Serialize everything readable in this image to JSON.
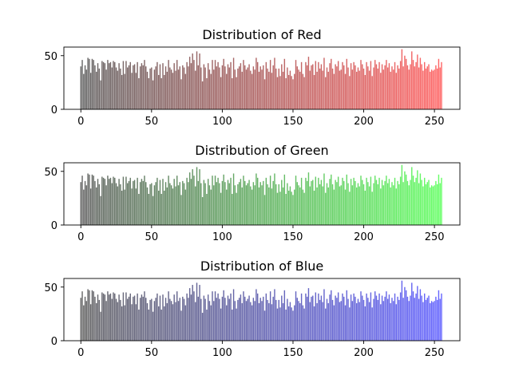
{
  "chart_data": [
    {
      "type": "bar",
      "title": "Distribution of Red",
      "color_end": "#ff0000",
      "xlim": [
        -12,
        268
      ],
      "ylim": [
        0,
        58
      ],
      "xticks": [
        0,
        50,
        100,
        150,
        200,
        250
      ],
      "yticks": [
        0,
        50
      ],
      "x_start": 0,
      "values": [
        40,
        46,
        33,
        41,
        37,
        48,
        47,
        34,
        47,
        46,
        41,
        35,
        43,
        38,
        27,
        45,
        44,
        43,
        37,
        46,
        43,
        44,
        39,
        45,
        44,
        39,
        36,
        43,
        38,
        32,
        45,
        33,
        45,
        39,
        41,
        44,
        34,
        41,
        42,
        34,
        44,
        29,
        40,
        43,
        41,
        46,
        40,
        35,
        29,
        38,
        39,
        27,
        37,
        40,
        44,
        32,
        42,
        29,
        43,
        32,
        40,
        35,
        46,
        39,
        37,
        34,
        43,
        36,
        46,
        37,
        40,
        28,
        41,
        39,
        33,
        44,
        40,
        49,
        43,
        52,
        46,
        36,
        54,
        41,
        52,
        39,
        26,
        42,
        39,
        29,
        43,
        37,
        33,
        46,
        37,
        46,
        40,
        44,
        39,
        30,
        41,
        47,
        40,
        33,
        42,
        39,
        44,
        29,
        48,
        37,
        30,
        38,
        40,
        43,
        35,
        46,
        41,
        37,
        39,
        42,
        36,
        33,
        40,
        37,
        48,
        44,
        35,
        40,
        37,
        41,
        28,
        44,
        38,
        35,
        46,
        34,
        41,
        48,
        38,
        30,
        38,
        31,
        42,
        35,
        47,
        29,
        39,
        32,
        36,
        31,
        28,
        33,
        46,
        40,
        37,
        35,
        44,
        33,
        30,
        44,
        41,
        49,
        36,
        41,
        42,
        32,
        45,
        35,
        44,
        38,
        42,
        36,
        48,
        30,
        39,
        35,
        43,
        47,
        38,
        33,
        42,
        40,
        45,
        36,
        37,
        44,
        41,
        33,
        47,
        39,
        31,
        43,
        37,
        44,
        41,
        35,
        39,
        36,
        46,
        42,
        38,
        32,
        44,
        40,
        36,
        45,
        31,
        39,
        46,
        42,
        38,
        44,
        34,
        42,
        37,
        41,
        46,
        39,
        43,
        35,
        40,
        37,
        44,
        34,
        41,
        38,
        45,
        56,
        40,
        50,
        47,
        41,
        37,
        42,
        54,
        46,
        40,
        44,
        51,
        39,
        48,
        42,
        36,
        44,
        38,
        40,
        42,
        35,
        37,
        36,
        37,
        41,
        38,
        47,
        39,
        44
      ]
    },
    {
      "type": "bar",
      "title": "Distribution of Green",
      "color_end": "#00ff00",
      "xlim": [
        -12,
        268
      ],
      "ylim": [
        0,
        58
      ],
      "xticks": [
        0,
        50,
        100,
        150,
        200,
        250
      ],
      "yticks": [
        0,
        50
      ],
      "x_start": 0,
      "values": [
        40,
        46,
        33,
        41,
        37,
        48,
        47,
        34,
        47,
        46,
        41,
        35,
        43,
        38,
        27,
        45,
        44,
        43,
        37,
        46,
        43,
        44,
        39,
        45,
        44,
        39,
        36,
        43,
        38,
        32,
        45,
        33,
        45,
        39,
        41,
        44,
        34,
        41,
        42,
        34,
        44,
        29,
        40,
        43,
        41,
        46,
        40,
        35,
        29,
        38,
        39,
        27,
        37,
        40,
        44,
        32,
        42,
        29,
        43,
        32,
        40,
        35,
        46,
        39,
        37,
        34,
        43,
        36,
        46,
        37,
        40,
        28,
        41,
        39,
        33,
        44,
        40,
        49,
        43,
        52,
        46,
        36,
        54,
        41,
        52,
        39,
        26,
        42,
        39,
        29,
        43,
        37,
        33,
        46,
        37,
        46,
        40,
        44,
        39,
        30,
        41,
        47,
        40,
        33,
        42,
        39,
        44,
        29,
        48,
        37,
        30,
        38,
        40,
        43,
        35,
        46,
        41,
        37,
        39,
        42,
        36,
        33,
        40,
        37,
        48,
        44,
        35,
        40,
        37,
        41,
        28,
        44,
        38,
        35,
        46,
        34,
        41,
        48,
        38,
        30,
        38,
        31,
        42,
        35,
        47,
        29,
        39,
        32,
        36,
        31,
        28,
        33,
        46,
        40,
        37,
        35,
        44,
        33,
        30,
        44,
        41,
        49,
        36,
        41,
        42,
        32,
        45,
        35,
        44,
        38,
        42,
        36,
        48,
        30,
        39,
        35,
        43,
        47,
        38,
        33,
        42,
        40,
        45,
        36,
        37,
        44,
        41,
        33,
        47,
        39,
        31,
        43,
        37,
        44,
        41,
        35,
        39,
        36,
        46,
        42,
        38,
        32,
        44,
        40,
        36,
        45,
        31,
        39,
        46,
        42,
        38,
        44,
        34,
        42,
        37,
        41,
        46,
        39,
        43,
        35,
        40,
        37,
        44,
        34,
        41,
        38,
        45,
        56,
        40,
        50,
        47,
        41,
        37,
        42,
        54,
        46,
        40,
        44,
        51,
        39,
        48,
        42,
        36,
        44,
        38,
        40,
        42,
        35,
        37,
        36,
        37,
        41,
        38,
        47,
        39,
        44
      ]
    },
    {
      "type": "bar",
      "title": "Distribution of Blue",
      "color_end": "#0000ff",
      "xlim": [
        -12,
        268
      ],
      "ylim": [
        0,
        58
      ],
      "xticks": [
        0,
        50,
        100,
        150,
        200,
        250
      ],
      "yticks": [
        0,
        50
      ],
      "x_start": 0,
      "values": [
        40,
        46,
        33,
        41,
        37,
        48,
        47,
        34,
        47,
        46,
        41,
        35,
        43,
        38,
        27,
        45,
        44,
        43,
        37,
        46,
        43,
        44,
        39,
        45,
        44,
        39,
        36,
        43,
        38,
        32,
        45,
        33,
        45,
        39,
        41,
        44,
        34,
        41,
        42,
        34,
        44,
        29,
        40,
        43,
        41,
        46,
        40,
        35,
        29,
        38,
        39,
        27,
        37,
        40,
        44,
        32,
        42,
        29,
        43,
        32,
        40,
        35,
        46,
        39,
        37,
        34,
        43,
        36,
        46,
        37,
        40,
        28,
        41,
        39,
        33,
        44,
        40,
        49,
        43,
        52,
        46,
        36,
        54,
        41,
        52,
        39,
        26,
        42,
        39,
        29,
        43,
        37,
        33,
        46,
        37,
        46,
        40,
        44,
        39,
        30,
        41,
        47,
        40,
        33,
        42,
        39,
        44,
        29,
        48,
        37,
        30,
        38,
        40,
        43,
        35,
        46,
        41,
        37,
        39,
        42,
        36,
        33,
        40,
        37,
        48,
        44,
        35,
        40,
        37,
        41,
        28,
        44,
        38,
        35,
        46,
        34,
        41,
        48,
        38,
        30,
        38,
        31,
        42,
        35,
        47,
        29,
        39,
        32,
        36,
        31,
        28,
        33,
        46,
        40,
        37,
        35,
        44,
        33,
        30,
        44,
        41,
        49,
        36,
        41,
        42,
        32,
        45,
        35,
        44,
        38,
        42,
        36,
        48,
        30,
        39,
        35,
        43,
        47,
        38,
        33,
        42,
        40,
        45,
        36,
        37,
        44,
        41,
        33,
        47,
        39,
        31,
        43,
        37,
        44,
        41,
        35,
        39,
        36,
        46,
        42,
        38,
        32,
        44,
        40,
        36,
        45,
        31,
        39,
        46,
        42,
        38,
        44,
        34,
        42,
        37,
        41,
        46,
        39,
        43,
        35,
        40,
        37,
        44,
        34,
        41,
        38,
        45,
        56,
        40,
        50,
        47,
        41,
        37,
        42,
        54,
        46,
        40,
        44,
        51,
        39,
        48,
        42,
        36,
        44,
        38,
        40,
        42,
        35,
        37,
        36,
        37,
        41,
        38,
        47,
        39,
        44
      ]
    }
  ]
}
